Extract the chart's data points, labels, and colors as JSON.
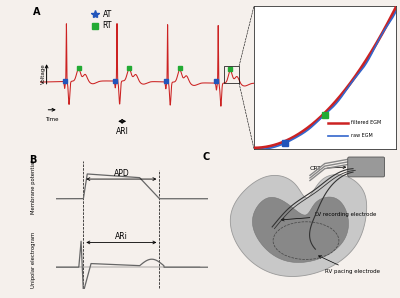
{
  "panel_A_label": "A",
  "panel_B_label": "B",
  "panel_C_label": "C",
  "legend_AT": "AT",
  "legend_RT": "RT",
  "legend_filtered": "filtered EGM",
  "legend_raw": "raw EGM",
  "ARI_label": "ARI",
  "APD_label": "APD",
  "ARI_label_B": "ARi",
  "voltage_label": "Voltage",
  "time_label": "Time",
  "membrane_label": "Membrane potential",
  "unipolar_label": "Unipolar electrogram",
  "CRT_label": "CRT",
  "LV_label": "LV recording electrode",
  "RV_label": "RV pacing electrode",
  "bg_color": "#f5f0ec",
  "egm_color": "#cc2222",
  "raw_color": "#3366cc",
  "at_color": "#2255bb",
  "rt_color": "#22aa33",
  "gray_line": "#666666",
  "gray_dark": "#444444",
  "heart_outer": "#c8c8c8",
  "heart_inner": "#a0a0a0",
  "heart_dark": "#888888"
}
